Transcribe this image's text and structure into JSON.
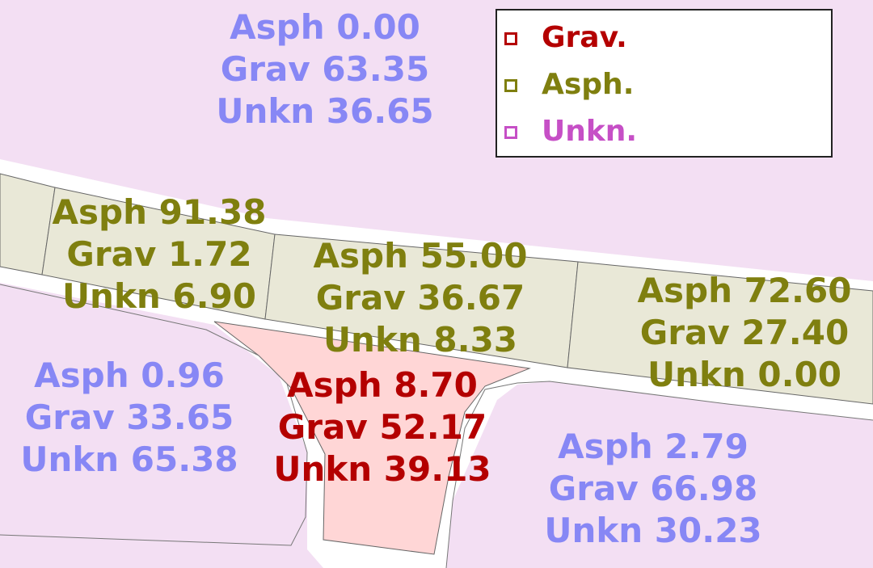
{
  "colors": {
    "background_parcel": "#f3dff3",
    "road": "#ffffff",
    "asphalt_segment": "#e9e8d7",
    "gravel_parcel": "#ffd6d6",
    "outline": "#555555"
  },
  "legend": {
    "items": [
      {
        "label": "Grav.",
        "color": "#b40000"
      },
      {
        "label": "Asph.",
        "color": "#7f7f0f"
      },
      {
        "label": "Unkn.",
        "color": "#c64fc6"
      }
    ]
  },
  "areas": {
    "north_parcel": {
      "asph": "Asph 0.00",
      "grav": "Grav 63.35",
      "unkn": "Unkn 36.65",
      "category": "Unkn."
    },
    "road_west": {
      "asph": "Asph 91.38",
      "grav": "Grav 1.72",
      "unkn": "Unkn 6.90",
      "category": "Asph."
    },
    "road_center": {
      "asph": "Asph 55.00",
      "grav": "Grav 36.67",
      "unkn": "Unkn 8.33",
      "category": "Asph."
    },
    "road_east": {
      "asph": "Asph 72.60",
      "grav": "Grav 27.40",
      "unkn": "Unkn 0.00",
      "category": "Asph."
    },
    "southwest_parcel": {
      "asph": "Asph 0.96",
      "grav": "Grav 33.65",
      "unkn": "Unkn 65.38",
      "category": "Unkn."
    },
    "south_gravel_parcel": {
      "asph": "Asph 8.70",
      "grav": "Grav 52.17",
      "unkn": "Unkn 39.13",
      "category": "Grav."
    },
    "southeast_parcel": {
      "asph": "Asph 2.79",
      "grav": "Grav 66.98",
      "unkn": "Unkn 30.23",
      "category": "Unkn."
    }
  }
}
